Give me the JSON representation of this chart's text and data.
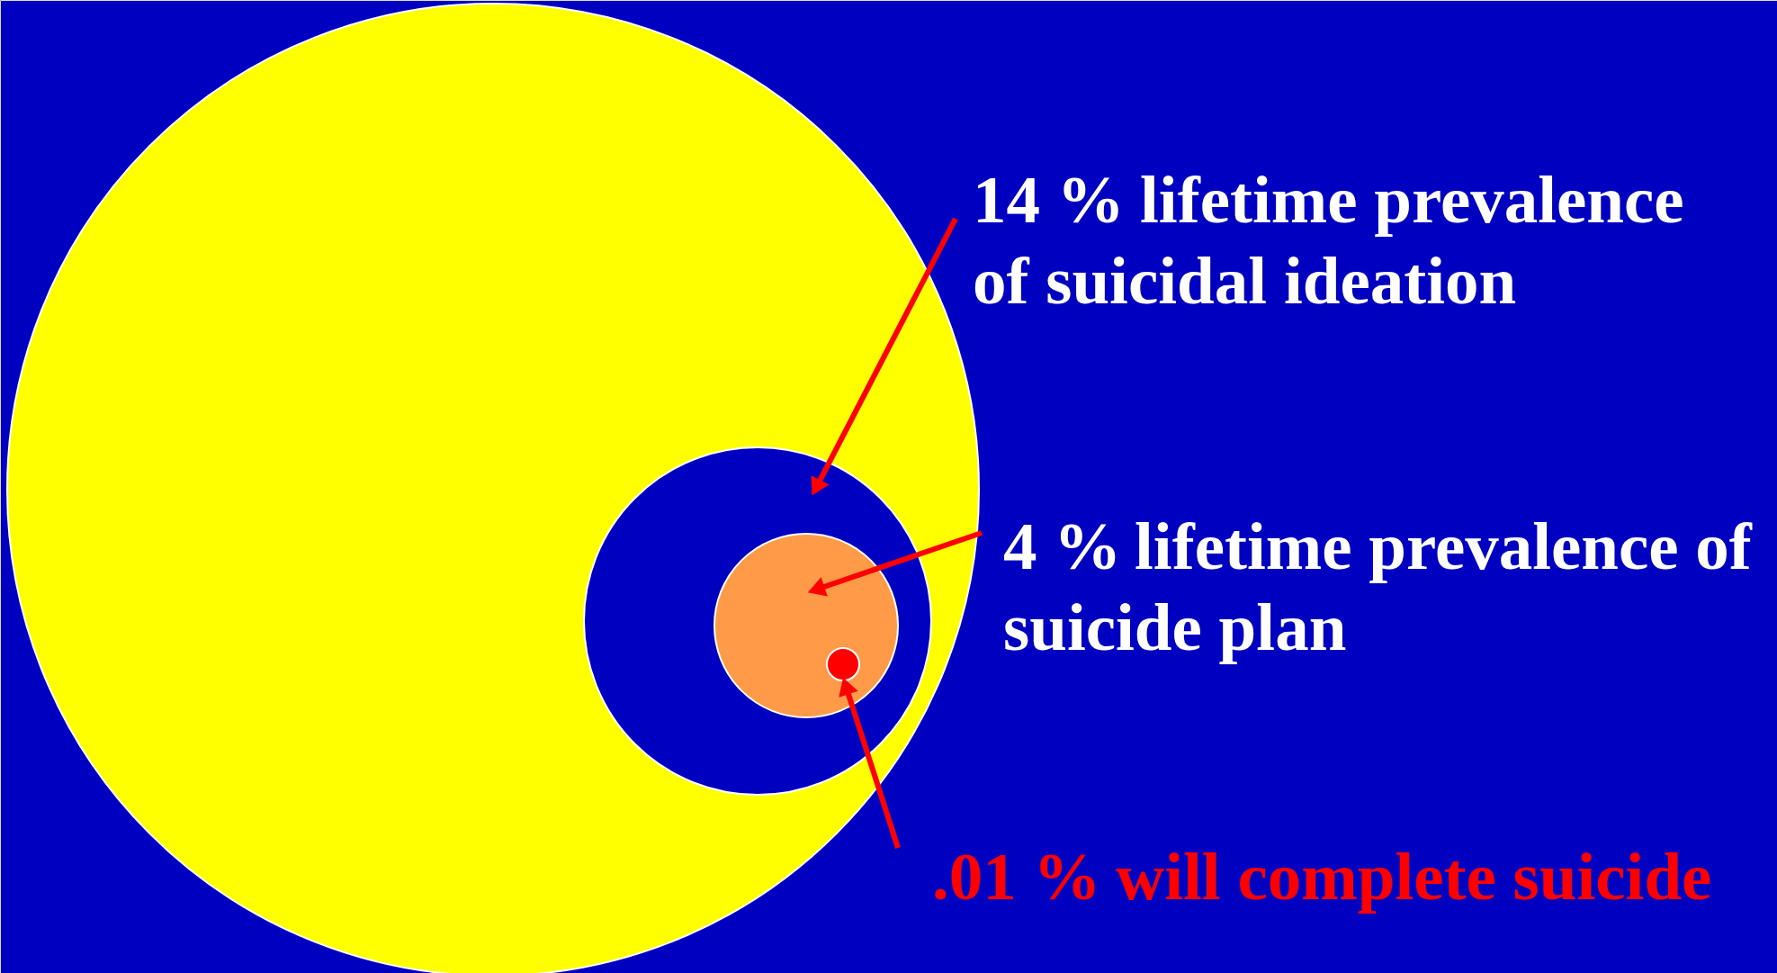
{
  "chart_data": {
    "type": "other",
    "categories": [
      "lifetime prevalence\nof suicidal ideation",
      "lifetime prevalence of\nsuicide plan",
      "will complete suicide"
    ],
    "values": [
      14,
      4,
      0.01
    ],
    "value_labels": [
      "14 %",
      "4 %",
      ".01 %"
    ],
    "colors": [
      "#0000c0",
      "#ff9a48",
      "#ff0000"
    ]
  }
}
